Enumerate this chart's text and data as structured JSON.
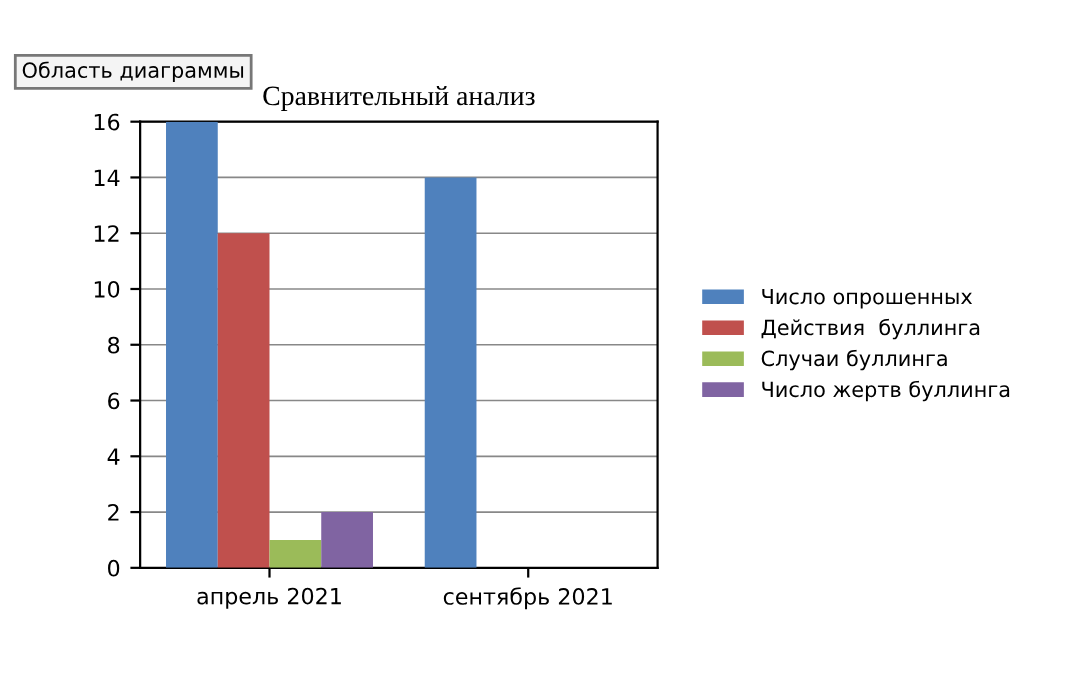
{
  "chart_data": {
    "type": "bar",
    "title": "Сравнительный анализ",
    "categories": [
      "апрель 2021",
      "сентябрь 2021"
    ],
    "series": [
      {
        "name": "Число опрошенных",
        "color": "#4f81bd",
        "values": [
          16,
          14
        ]
      },
      {
        "name": "Действия  буллинга",
        "color": "#c0504d",
        "values": [
          12,
          0
        ]
      },
      {
        "name": "Случаи буллинга",
        "color": "#9bbb59",
        "values": [
          1,
          0
        ]
      },
      {
        "name": "Число жертв буллинга",
        "color": "#8064a2",
        "values": [
          2,
          0
        ]
      }
    ],
    "ylim": [
      0,
      16
    ],
    "yticks": [
      0,
      2,
      4,
      6,
      8,
      10,
      12,
      14,
      16
    ],
    "grid": "y",
    "legend": "right",
    "annotations": [
      "Область диаграммы"
    ]
  }
}
